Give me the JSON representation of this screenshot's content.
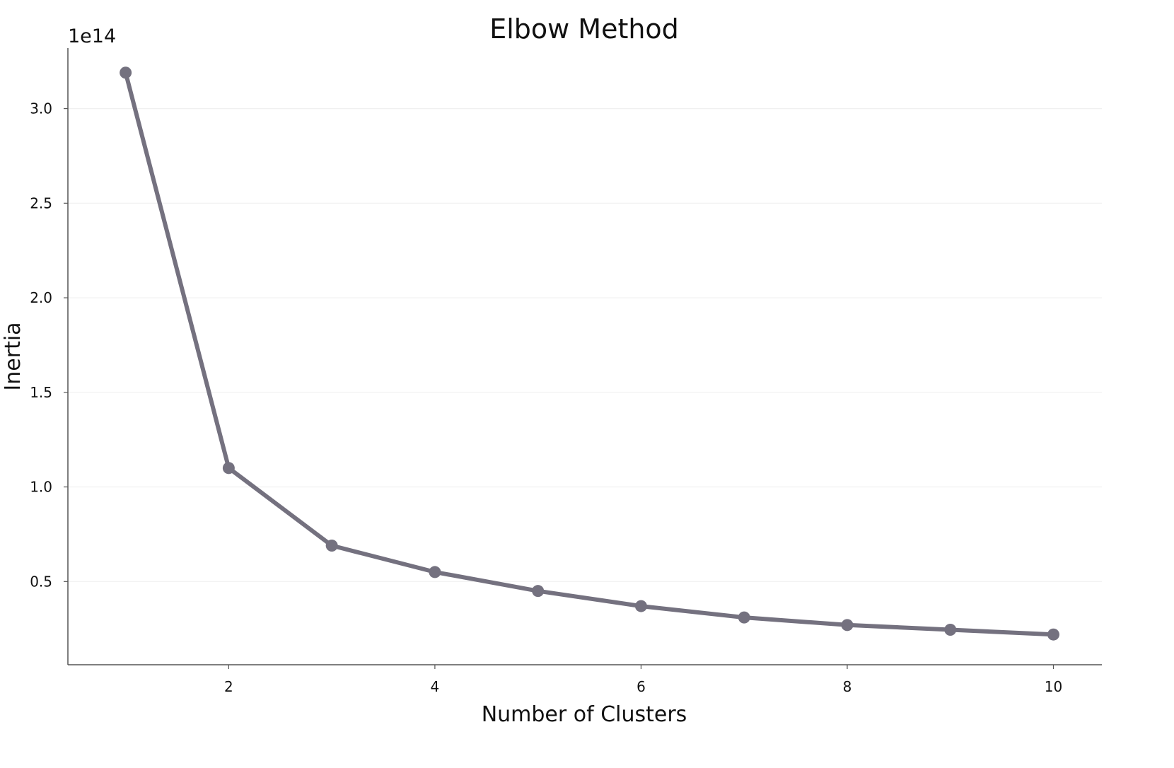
{
  "chart_data": {
    "type": "line",
    "title": "Elbow Method",
    "xlabel": "Number of Clusters",
    "ylabel": "Inertia",
    "y_offset_label": "1e14",
    "x": [
      1,
      2,
      3,
      4,
      5,
      6,
      7,
      8,
      9,
      10
    ],
    "series": [
      {
        "values": [
          319000000000000.0,
          110000000000000.0,
          69000000000000.0,
          55000000000000.0,
          45000000000000.0,
          37000000000000.0,
          31000000000000.0,
          27000000000000.0,
          24500000000000.0,
          22000000000000.0
        ]
      }
    ],
    "xlim": [
      0.44,
      10.47
    ],
    "ylim": [
      6000000000000.0,
      332000000000000.0
    ],
    "x_ticks": [
      2,
      4,
      6,
      8,
      10
    ],
    "x_tick_labels": [
      "2",
      "4",
      "6",
      "8",
      "10"
    ],
    "y_ticks": [
      50000000000000.0,
      100000000000000.0,
      150000000000000.0,
      200000000000000.0,
      250000000000000.0,
      300000000000000.0
    ],
    "y_tick_labels": [
      "0.5",
      "1.0",
      "1.5",
      "2.0",
      "2.5",
      "3.0"
    ],
    "grid": "horizontal",
    "line_color": "#74717f",
    "grid_color": "#f0f0f0",
    "axis_color": "#555555"
  }
}
